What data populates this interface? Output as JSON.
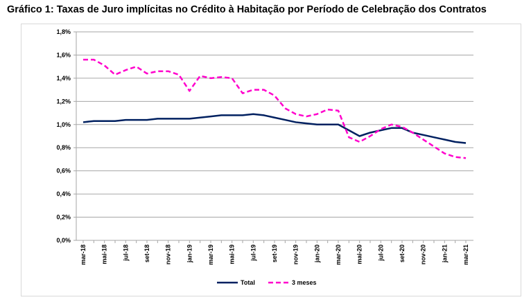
{
  "chart_data": {
    "type": "line",
    "title": "Gráfico 1: Taxas de Juro implícitas no Crédito à Habitação por Período de Celebração dos Contratos",
    "xlabel": "",
    "ylabel": "",
    "ylim": [
      0,
      1.8
    ],
    "yticks": [
      "0,0%",
      "0,2%",
      "0,4%",
      "0,6%",
      "0,8%",
      "1,0%",
      "1,2%",
      "1,4%",
      "1,6%",
      "1,8%"
    ],
    "grid": true,
    "legend": "bottom",
    "x": [
      "mar-18",
      "abr-18",
      "mai-18",
      "jun-18",
      "jul-18",
      "ago-18",
      "set-18",
      "out-18",
      "nov-18",
      "dez-18",
      "jan-19",
      "fev-19",
      "mar-19",
      "abr-19",
      "mai-19",
      "jun-19",
      "jul-19",
      "ago-19",
      "set-19",
      "out-19",
      "nov-19",
      "dez-19",
      "jan-20",
      "fev-20",
      "mar-20",
      "abr-20",
      "mai-20",
      "jun-20",
      "jul-20",
      "ago-20",
      "set-20",
      "out-20",
      "nov-20",
      "dez-20",
      "jan-21",
      "fev-21",
      "mar-21"
    ],
    "xticks": [
      "mar-18",
      "mai-18",
      "jul-18",
      "set-18",
      "nov-18",
      "jan-19",
      "mar-19",
      "mai-19",
      "jul-19",
      "set-19",
      "nov-19",
      "jan-20",
      "mar-20",
      "mai-20",
      "jul-20",
      "set-20",
      "nov-20",
      "jan-21",
      "mar-21"
    ],
    "series": [
      {
        "name": "Total",
        "color": "#002060",
        "dash": false,
        "values": [
          1.02,
          1.03,
          1.03,
          1.03,
          1.04,
          1.04,
          1.04,
          1.05,
          1.05,
          1.05,
          1.05,
          1.06,
          1.07,
          1.08,
          1.08,
          1.08,
          1.09,
          1.08,
          1.06,
          1.04,
          1.02,
          1.01,
          1.0,
          1.0,
          1.0,
          0.95,
          0.9,
          0.93,
          0.95,
          0.97,
          0.97,
          0.93,
          0.91,
          0.89,
          0.87,
          0.85,
          0.84
        ]
      },
      {
        "name": "3 meses",
        "color": "#ff00cc",
        "dash": true,
        "values": [
          1.56,
          1.56,
          1.51,
          1.43,
          1.47,
          1.5,
          1.44,
          1.46,
          1.46,
          1.43,
          1.29,
          1.42,
          1.4,
          1.41,
          1.4,
          1.27,
          1.3,
          1.3,
          1.25,
          1.14,
          1.09,
          1.07,
          1.09,
          1.13,
          1.12,
          0.89,
          0.85,
          0.9,
          0.96,
          1.0,
          0.98,
          0.93,
          0.87,
          0.81,
          0.75,
          0.72,
          0.71
        ]
      }
    ]
  }
}
